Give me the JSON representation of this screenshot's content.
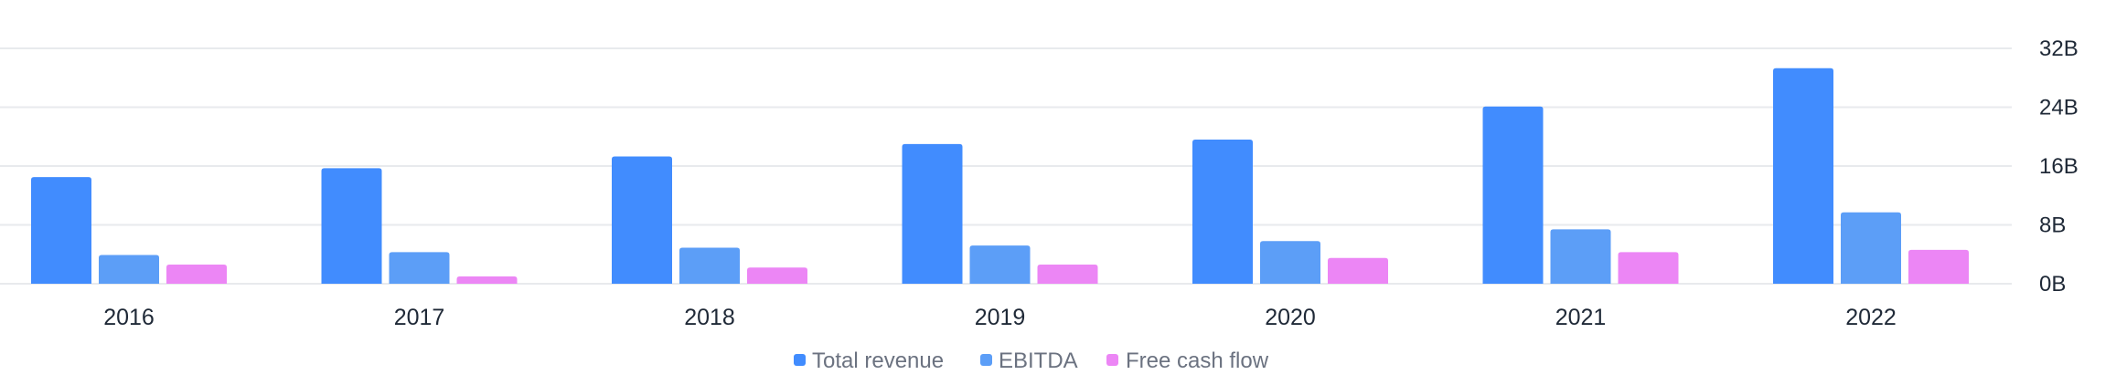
{
  "chart_data": {
    "type": "bar",
    "categories": [
      "2016",
      "2017",
      "2018",
      "2019",
      "2020",
      "2021",
      "2022"
    ],
    "series": [
      {
        "name": "Total revenue",
        "color": "#418cfe",
        "values": [
          14.5,
          15.7,
          17.3,
          19.0,
          19.6,
          24.1,
          29.3
        ]
      },
      {
        "name": "EBITDA",
        "color": "#5c9ef7",
        "values": [
          3.9,
          4.3,
          4.9,
          5.2,
          5.8,
          7.4,
          9.7
        ]
      },
      {
        "name": "Free cash flow",
        "color": "#ec86f5",
        "values": [
          2.6,
          1.0,
          2.2,
          2.6,
          3.5,
          4.3,
          4.6
        ]
      }
    ],
    "y_ticks": [
      {
        "value": 0,
        "label": "0B"
      },
      {
        "value": 8,
        "label": "8B"
      },
      {
        "value": 16,
        "label": "16B"
      },
      {
        "value": 24,
        "label": "24B"
      },
      {
        "value": 32,
        "label": "32B"
      }
    ],
    "ylim": [
      0,
      32
    ],
    "y_axis_position": "right",
    "grid": true,
    "legend_position": "bottom-center",
    "title": "",
    "xlabel": "",
    "ylabel": ""
  }
}
